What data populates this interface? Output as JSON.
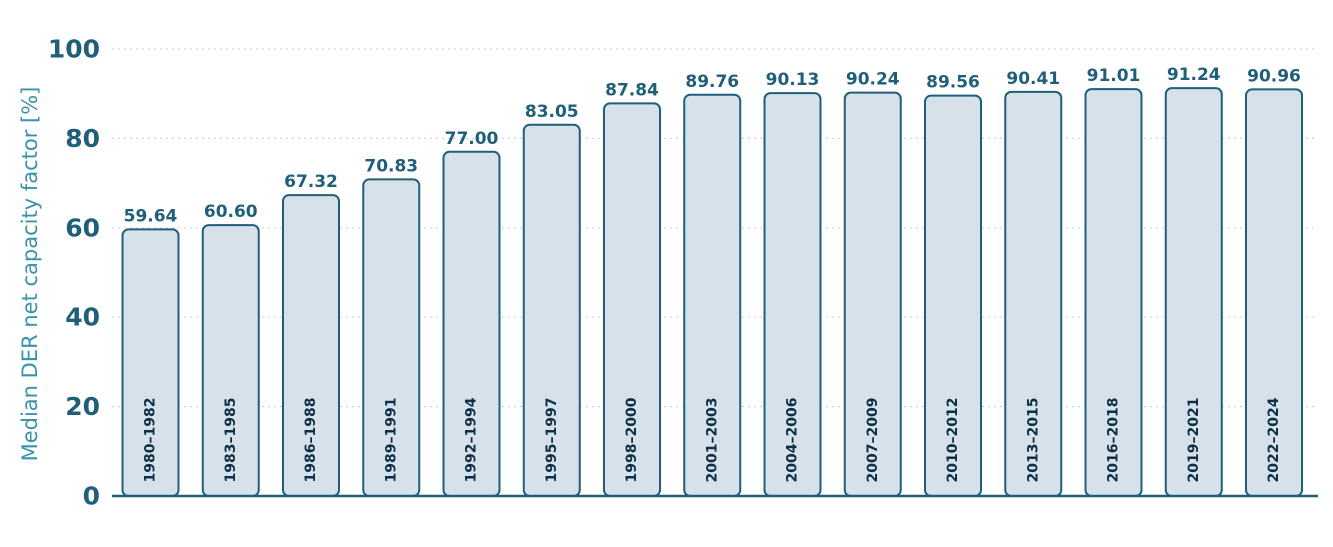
{
  "chart_data": {
    "type": "bar",
    "title": "",
    "xlabel": "",
    "ylabel": "Median DER net capacity factor [%]",
    "ylim": [
      0,
      100
    ],
    "yticks": [
      0,
      20,
      40,
      60,
      80,
      100
    ],
    "grid": "horizontal-dotted",
    "categories": [
      "1980–1982",
      "1983–1985",
      "1986–1988",
      "1989–1991",
      "1992–1994",
      "1995–1997",
      "1998–2000",
      "2001–2003",
      "2004–2006",
      "2007–2009",
      "2010–2012",
      "2013–2015",
      "2016–2018",
      "2019–2021",
      "2022–2024"
    ],
    "values": [
      59.64,
      60.6,
      67.32,
      70.83,
      77.0,
      83.05,
      87.84,
      89.76,
      90.13,
      90.24,
      89.56,
      90.41,
      91.01,
      91.24,
      90.96
    ],
    "value_labels": [
      "59.64",
      "60.60",
      "67.32",
      "70.83",
      "77.00",
      "83.05",
      "87.84",
      "89.76",
      "90.13",
      "90.24",
      "89.56",
      "90.41",
      "91.01",
      "91.24",
      "90.96"
    ],
    "colors": {
      "bar_fill": "#d6e1ea",
      "bar_stroke": "#1f5f7a",
      "text": "#1f5f7a",
      "axis_label": "#3a93ac",
      "grid": "#c9d6de"
    }
  }
}
